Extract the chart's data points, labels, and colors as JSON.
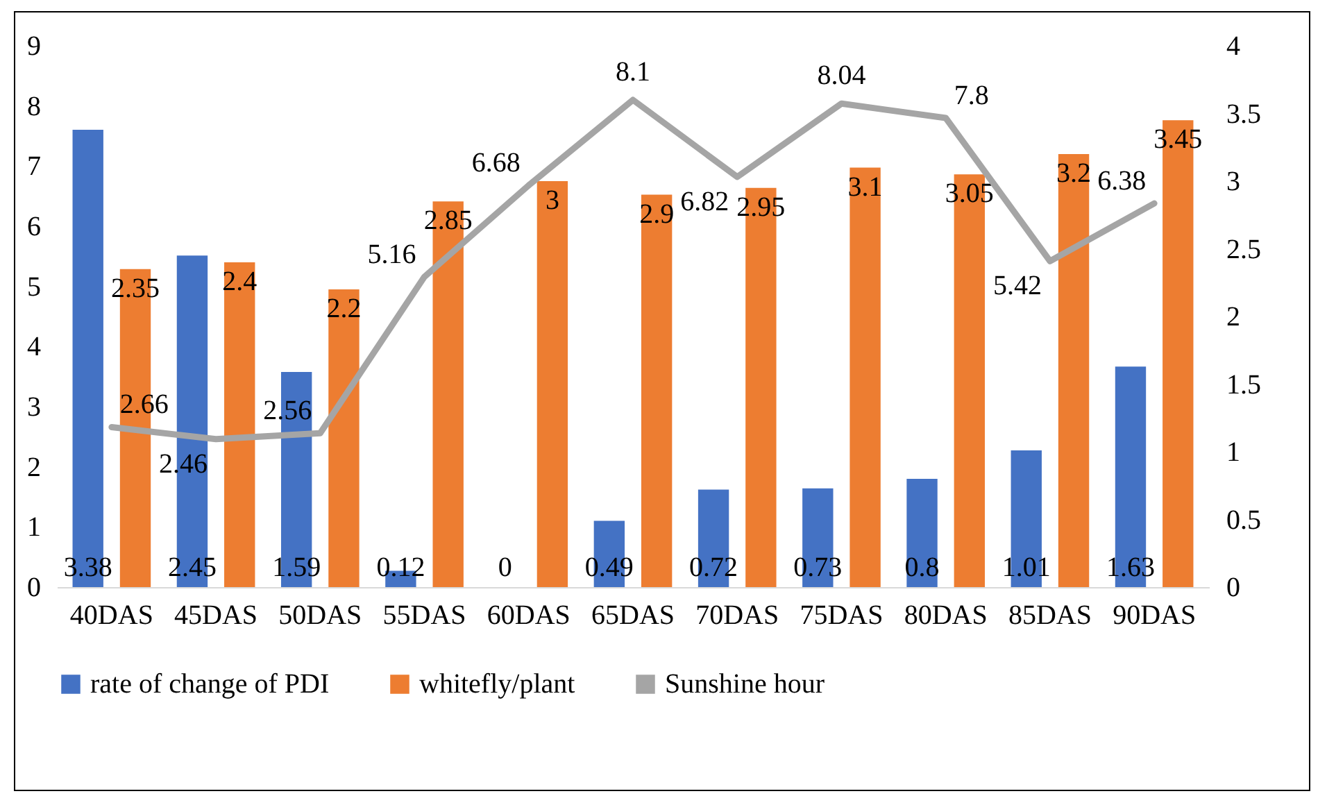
{
  "chart_data": {
    "type": "bar",
    "categories": [
      "40DAS",
      "45DAS",
      "50DAS",
      "55DAS",
      "60DAS",
      "65DAS",
      "70DAS",
      "75DAS",
      "80DAS",
      "85DAS",
      "90DAS"
    ],
    "series": [
      {
        "name": "rate of change of PDI",
        "color": "#4472c4",
        "axis": "y2",
        "values": [
          3.38,
          2.45,
          1.59,
          0.12,
          0,
          0.49,
          0.72,
          0.73,
          0.8,
          1.01,
          1.63
        ]
      },
      {
        "name": "whitefly/plant",
        "color": "#ed7d31",
        "axis": "y2",
        "values": [
          2.35,
          2.4,
          2.2,
          2.85,
          3,
          2.9,
          2.95,
          3.1,
          3.05,
          3.2,
          3.45
        ]
      },
      {
        "name": "Sunshine hour",
        "color": "#a5a5a5",
        "type": "line",
        "values": [
          2.66,
          2.46,
          2.56,
          5.16,
          6.68,
          8.1,
          6.82,
          8.04,
          7.8,
          5.42,
          6.38
        ]
      }
    ],
    "ylim": [
      0,
      9
    ],
    "yticks": [
      0,
      1,
      2,
      3,
      4,
      5,
      6,
      7,
      8,
      9
    ],
    "y2lim": [
      0,
      4
    ],
    "y2ticks": [
      0,
      0.5,
      1,
      1.5,
      2,
      2.5,
      3,
      3.5,
      4
    ],
    "data_labels": true,
    "grid": false,
    "legend": "bottom",
    "marker": "none",
    "line_style": "solid"
  }
}
